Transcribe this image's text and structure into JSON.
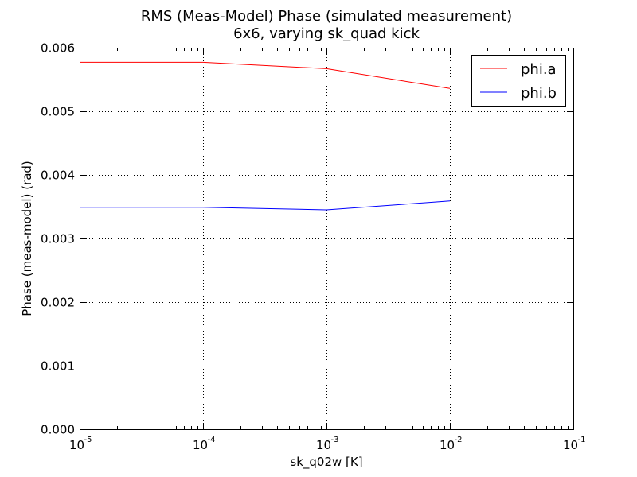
{
  "chart_data": {
    "type": "line",
    "title": "RMS (Meas-Model) Phase (simulated measurement)",
    "subtitle": "6x6, varying sk_quad kick",
    "xlabel": "sk_q02w [K]",
    "ylabel": "Phase (meas-model) (rad)",
    "xscale": "log",
    "xlim": [
      1e-05,
      0.1
    ],
    "ylim": [
      0,
      0.006
    ],
    "x_ticks": [
      {
        "value": 1e-05,
        "base": "10",
        "exp": "-5"
      },
      {
        "value": 0.0001,
        "base": "10",
        "exp": "-4"
      },
      {
        "value": 0.001,
        "base": "10",
        "exp": "-3"
      },
      {
        "value": 0.01,
        "base": "10",
        "exp": "-2"
      },
      {
        "value": 0.1,
        "base": "10",
        "exp": "-1"
      }
    ],
    "y_ticks": [
      {
        "value": 0,
        "label": "0.000"
      },
      {
        "value": 0.001,
        "label": "0.001"
      },
      {
        "value": 0.002,
        "label": "0.002"
      },
      {
        "value": 0.003,
        "label": "0.003"
      },
      {
        "value": 0.004,
        "label": "0.004"
      },
      {
        "value": 0.005,
        "label": "0.005"
      },
      {
        "value": 0.006,
        "label": "0.006"
      }
    ],
    "grid": true,
    "legend_position": "top-right",
    "x": [
      1e-05,
      0.0001,
      0.001,
      0.01
    ],
    "series": [
      {
        "name": "phi.a",
        "color": "#ff0000",
        "values": [
          0.00577,
          0.00577,
          0.00567,
          0.00536
        ]
      },
      {
        "name": "phi.b",
        "color": "#0000ff",
        "values": [
          0.00349,
          0.00349,
          0.00345,
          0.00359
        ]
      }
    ]
  }
}
